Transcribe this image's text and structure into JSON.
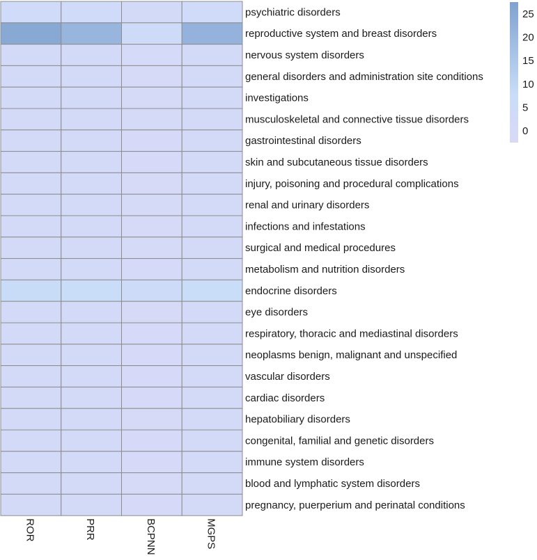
{
  "chart_data": {
    "type": "heatmap",
    "title": "",
    "columns": [
      "ROR",
      "PRR",
      "BCPNN",
      "MGPS"
    ],
    "rows": [
      "psychiatric disorders",
      "reproductive system and breast disorders",
      "nervous system disorders",
      "general disorders and administration site conditions",
      "investigations",
      "musculoskeletal and connective tissue disorders",
      "gastrointestinal disorders",
      "skin and subcutaneous tissue disorders",
      "injury, poisoning and procedural complications",
      "renal and urinary disorders",
      "infections and infestations",
      "surgical and medical procedures",
      "metabolism and nutrition disorders",
      "endocrine disorders",
      "eye disorders",
      "respiratory, thoracic and mediastinal disorders",
      "neoplasms benign, malignant and unspecified",
      "vascular disorders",
      "cardiac disorders",
      "hepatobiliary disorders",
      "congenital, familial and genetic disorders",
      "immune system disorders",
      "blood and lymphatic system disorders",
      "pregnancy, puerperium and perinatal conditions"
    ],
    "values": [
      [
        3.5,
        3.5,
        2.0,
        3.5
      ],
      [
        25.0,
        21.0,
        5.0,
        22.0
      ],
      [
        2.0,
        2.0,
        0.3,
        2.0
      ],
      [
        1.5,
        1.5,
        -0.5,
        1.5
      ],
      [
        1.8,
        1.8,
        0.0,
        1.8
      ],
      [
        1.8,
        1.8,
        0.0,
        1.8
      ],
      [
        1.3,
        1.3,
        -0.8,
        1.3
      ],
      [
        1.3,
        1.3,
        -0.8,
        1.3
      ],
      [
        1.5,
        1.5,
        -0.5,
        1.5
      ],
      [
        1.8,
        1.8,
        0.0,
        1.8
      ],
      [
        1.5,
        1.5,
        -0.5,
        1.5
      ],
      [
        1.8,
        1.8,
        0.0,
        1.8
      ],
      [
        2.0,
        2.0,
        0.3,
        2.0
      ],
      [
        8.0,
        7.5,
        4.5,
        7.5
      ],
      [
        1.5,
        1.5,
        -0.5,
        1.5
      ],
      [
        1.3,
        1.3,
        -0.8,
        1.3
      ],
      [
        1.3,
        1.3,
        -0.8,
        1.3
      ],
      [
        1.3,
        1.3,
        -0.8,
        1.3
      ],
      [
        1.3,
        1.3,
        -0.8,
        1.3
      ],
      [
        1.5,
        1.5,
        -0.5,
        1.5
      ],
      [
        1.3,
        1.3,
        -0.8,
        1.3
      ],
      [
        1.3,
        1.3,
        -0.8,
        1.3
      ],
      [
        1.5,
        1.5,
        -0.5,
        1.5
      ],
      [
        1.3,
        1.3,
        -0.8,
        1.3
      ]
    ],
    "colorbar": {
      "ticks": [
        0,
        5,
        10,
        15,
        20,
        25
      ],
      "range": [
        -2.5,
        27.5
      ],
      "colors": {
        "low": "#d9d9f7",
        "mid": "#c8dcf8",
        "high": "#7fa2cf"
      }
    },
    "legend_placement": "top-right",
    "grid": true
  }
}
